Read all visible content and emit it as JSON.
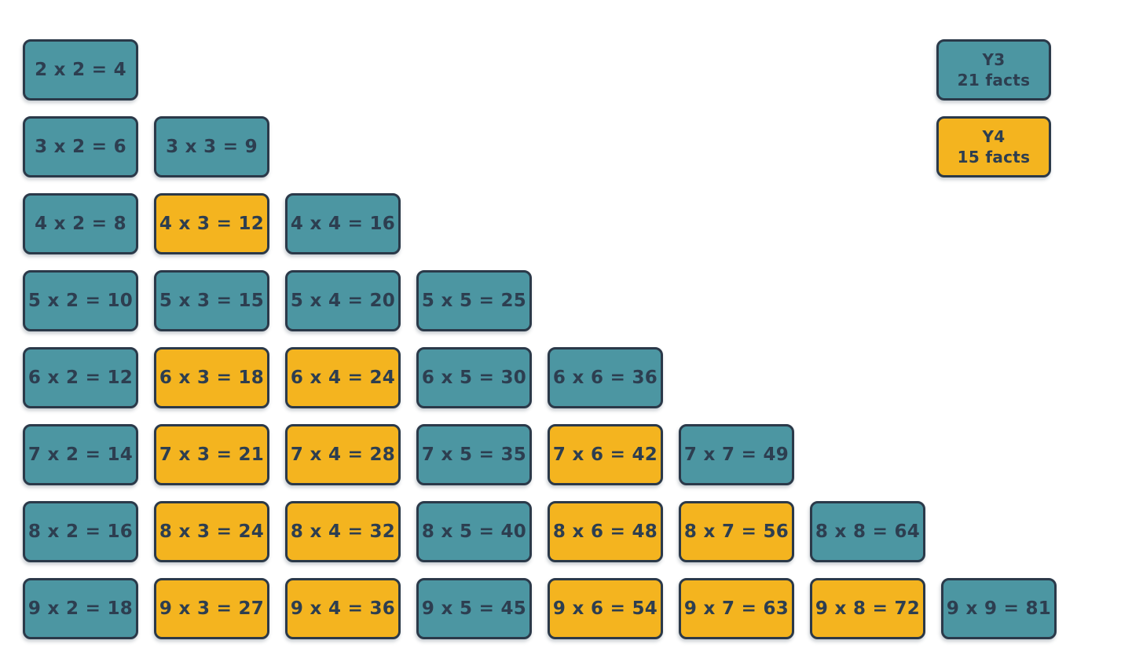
{
  "colors": {
    "y3_fill": "#4c96a2",
    "y4_fill": "#f4b41f",
    "card_border": "#2b3949",
    "card_text": "#2d3e50",
    "background": "#ffffff"
  },
  "legend": {
    "items": [
      {
        "label": "Y3",
        "count_label": "21 facts",
        "group": "y3"
      },
      {
        "label": "Y4",
        "count_label": "15 facts",
        "group": "y4"
      }
    ]
  },
  "facts": {
    "rows": [
      {
        "cards": [
          {
            "text": "2 x 2 = 4",
            "group": "y3"
          }
        ]
      },
      {
        "cards": [
          {
            "text": "3 x 2 = 6",
            "group": "y3"
          },
          {
            "text": "3 x 3 = 9",
            "group": "y3"
          }
        ]
      },
      {
        "cards": [
          {
            "text": "4 x 2 = 8",
            "group": "y3"
          },
          {
            "text": "4 x 3 = 12",
            "group": "y4"
          },
          {
            "text": "4 x 4 = 16",
            "group": "y3"
          }
        ]
      },
      {
        "cards": [
          {
            "text": "5 x 2 = 10",
            "group": "y3"
          },
          {
            "text": "5 x 3 = 15",
            "group": "y3"
          },
          {
            "text": "5 x 4 = 20",
            "group": "y3"
          },
          {
            "text": "5 x 5 = 25",
            "group": "y3"
          }
        ]
      },
      {
        "cards": [
          {
            "text": "6 x 2 = 12",
            "group": "y3"
          },
          {
            "text": "6 x 3 = 18",
            "group": "y4"
          },
          {
            "text": "6 x 4 = 24",
            "group": "y4"
          },
          {
            "text": "6 x 5 = 30",
            "group": "y3"
          },
          {
            "text": "6 x 6 = 36",
            "group": "y3"
          }
        ]
      },
      {
        "cards": [
          {
            "text": "7 x 2 = 14",
            "group": "y3"
          },
          {
            "text": "7 x 3 = 21",
            "group": "y4"
          },
          {
            "text": "7 x 4 = 28",
            "group": "y4"
          },
          {
            "text": "7 x 5 = 35",
            "group": "y3"
          },
          {
            "text": "7 x 6 = 42",
            "group": "y4"
          },
          {
            "text": "7 x 7 = 49",
            "group": "y3"
          }
        ]
      },
      {
        "cards": [
          {
            "text": "8 x 2 = 16",
            "group": "y3"
          },
          {
            "text": "8 x 3 = 24",
            "group": "y4"
          },
          {
            "text": "8 x 4 = 32",
            "group": "y4"
          },
          {
            "text": "8 x 5 = 40",
            "group": "y3"
          },
          {
            "text": "8 x 6 = 48",
            "group": "y4"
          },
          {
            "text": "8 x 7 = 56",
            "group": "y4"
          },
          {
            "text": "8 x 8 = 64",
            "group": "y3"
          }
        ]
      },
      {
        "cards": [
          {
            "text": "9 x 2 = 18",
            "group": "y3"
          },
          {
            "text": "9 x 3 = 27",
            "group": "y4"
          },
          {
            "text": "9 x 4 = 36",
            "group": "y4"
          },
          {
            "text": "9 x 5 = 45",
            "group": "y3"
          },
          {
            "text": "9 x 6 = 54",
            "group": "y4"
          },
          {
            "text": "9 x 7 = 63",
            "group": "y4"
          },
          {
            "text": "9 x 8 = 72",
            "group": "y4"
          },
          {
            "text": "9 x 9 = 81",
            "group": "y3"
          }
        ]
      }
    ]
  }
}
